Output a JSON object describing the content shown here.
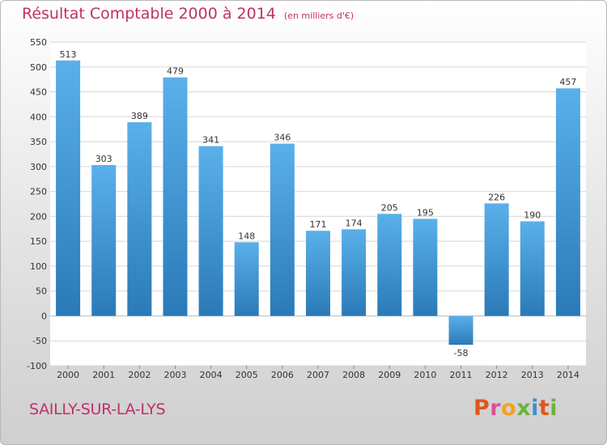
{
  "title": {
    "main": "Résultat Comptable 2000 à 2014",
    "unit": "(en milliers d'€)"
  },
  "commune": "SAILLY-SUR-LA-LYS",
  "logo": {
    "letters": [
      "P",
      "r",
      "o",
      "x",
      "i",
      "t",
      "i"
    ],
    "colors": [
      "#e0561d",
      "#d94f9a",
      "#f2a21e",
      "#6cb33f",
      "#3f8fd2",
      "#e0561d",
      "#6cb33f"
    ]
  },
  "colors": {
    "title": "#c0306a",
    "bar_light": "#5ab0ea",
    "bar_dark": "#2a7ab8",
    "plot_bg": "#ffffff",
    "grid": "#d8d8d8"
  },
  "chart_data": {
    "type": "bar",
    "title": "Résultat Comptable 2000 à 2014",
    "subtitle": "(en milliers d'€)",
    "xlabel": "",
    "ylabel": "",
    "categories": [
      "2000",
      "2001",
      "2002",
      "2003",
      "2004",
      "2005",
      "2006",
      "2007",
      "2008",
      "2009",
      "2010",
      "2011",
      "2012",
      "2013",
      "2014"
    ],
    "values": [
      513,
      303,
      389,
      479,
      341,
      148,
      346,
      171,
      174,
      205,
      195,
      -58,
      226,
      190,
      457
    ],
    "ylim": [
      -100,
      550
    ],
    "yticks": [
      -100,
      -50,
      0,
      50,
      100,
      150,
      200,
      250,
      300,
      350,
      400,
      450,
      500,
      550
    ],
    "grid": true,
    "legend": "none"
  }
}
